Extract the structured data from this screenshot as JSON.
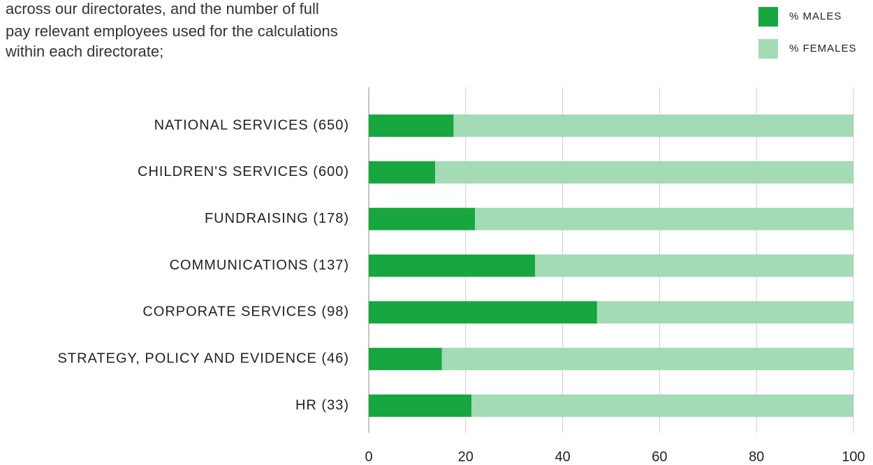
{
  "intro": [
    "across our directorates, and the number of full",
    "pay relevant employees used for the calculations",
    "within each directorate;"
  ],
  "chart_data": {
    "type": "stacked-barh",
    "categories": [
      "NATIONAL SERVICES (650)",
      "CHILDREN'S SERVICES (600)",
      "FUNDRAISING (178)",
      "COMMUNICATIONS (137)",
      "CORPORATE SERVICES (98)",
      "STRATEGY, POLICY AND EVIDENCE (46)",
      "HR (33)"
    ],
    "series": [
      {
        "name": "% MALES",
        "color": "#17a640",
        "values": [
          17.5,
          13.7,
          21.9,
          34.3,
          47.1,
          15.1,
          21.2
        ]
      },
      {
        "name": "% FEMALES",
        "color": "#a2dbb5",
        "values": [
          82.5,
          86.3,
          78.1,
          65.7,
          52.9,
          84.9,
          78.8
        ]
      }
    ],
    "xlim": [
      0,
      100
    ],
    "xticks": [
      0,
      20,
      40,
      60,
      80,
      100
    ],
    "grid": true,
    "legend": "top-right"
  }
}
